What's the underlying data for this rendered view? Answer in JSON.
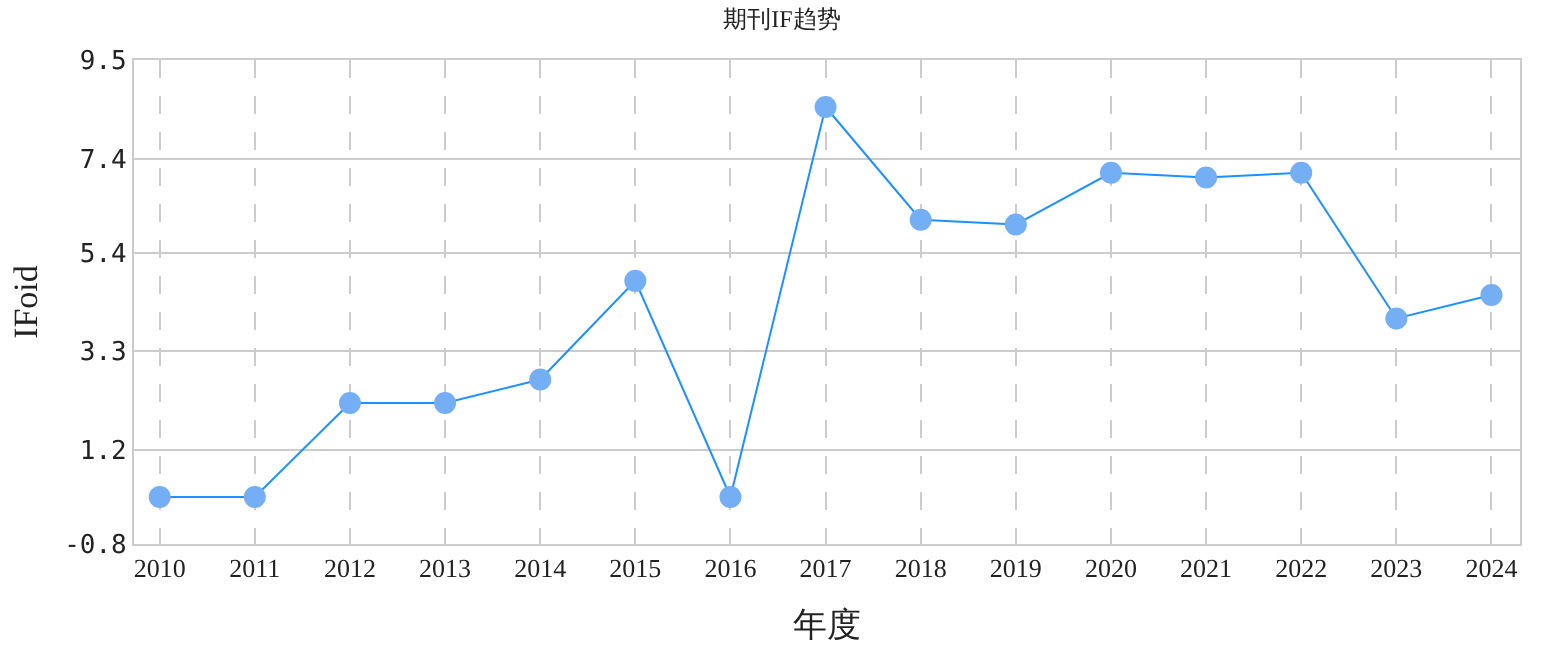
{
  "chart_data": {
    "type": "line",
    "title": "期刊IF趋势",
    "xlabel": "年度",
    "ylabel": "IFoid",
    "categories": [
      "2010",
      "2011",
      "2012",
      "2013",
      "2014",
      "2015",
      "2016",
      "2017",
      "2018",
      "2019",
      "2020",
      "2021",
      "2022",
      "2023",
      "2024"
    ],
    "series": [
      {
        "color": "#1e90ff",
        "values": [
          0.2,
          0.2,
          2.2,
          2.2,
          2.7,
          4.8,
          0.2,
          8.5,
          6.1,
          6.0,
          7.1,
          7.0,
          7.1,
          4.0,
          4.5
        ]
      }
    ],
    "ylim": [
      -0.8,
      9.5
    ],
    "yticks": [
      -0.8,
      1.2,
      3.3,
      5.4,
      7.4,
      9.5
    ],
    "grid": true,
    "marker": "circle",
    "line_style": "solid"
  }
}
